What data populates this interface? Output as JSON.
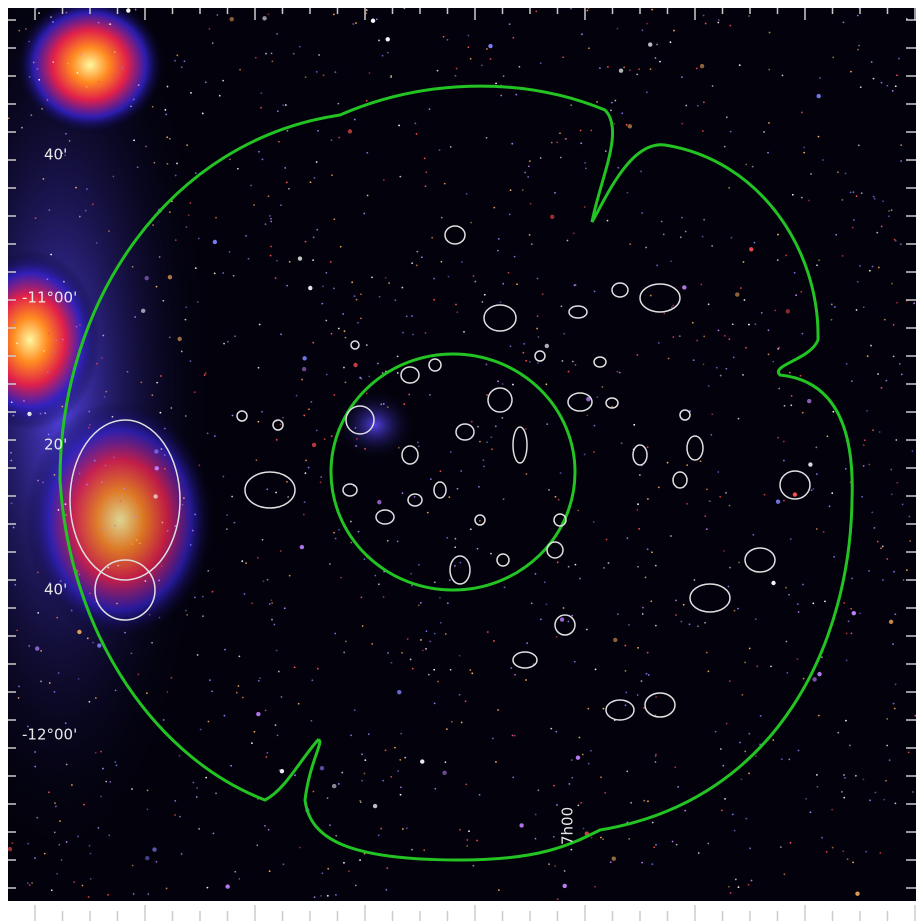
{
  "image": {
    "dec_labels": [
      "40'",
      "-11°00'",
      "20'",
      "40'",
      "-12°00'"
    ],
    "ra_labels": [
      "7h00"
    ]
  }
}
